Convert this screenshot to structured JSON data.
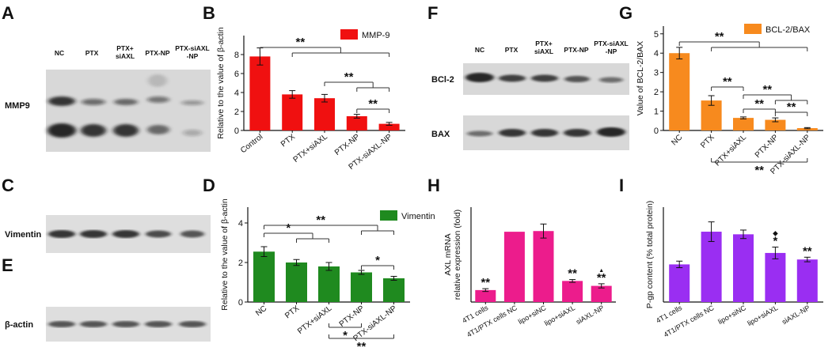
{
  "panel_letters": [
    "A",
    "B",
    "C",
    "D",
    "E",
    "F",
    "G",
    "H",
    "I"
  ],
  "blots": {
    "A": {
      "lanes": [
        "NC",
        "PTX",
        "PTX+\nsiAXL",
        "PTX-NP",
        "PTX-siAXL\n-NP"
      ],
      "row_label": "MMP9"
    },
    "C": {
      "row_label": "Vimentin"
    },
    "E": {
      "row_label": "β-actin"
    },
    "F": {
      "lanes": [
        "NC",
        "PTX",
        "PTX+\nsiAXL",
        "PTX-NP",
        "PTX-siAXL\n-NP"
      ],
      "row_labels": [
        "BCl-2",
        "BAX"
      ]
    }
  },
  "sig_marks": {
    "double": "**",
    "single": "*",
    "diamond": "◆",
    "triangle": "▲"
  },
  "colors": {
    "red": "#f01010",
    "green": "#1f8a1f",
    "orange": "#f78a1e",
    "pink": "#ec1c8c",
    "purple": "#9a2ef2"
  },
  "chart_data": [
    {
      "panel": "B",
      "type": "bar",
      "categories": [
        "Control",
        "PTX",
        "PTX+siAXL",
        "PTX-NP",
        "PTX-siAXL-NP"
      ],
      "series": [
        {
          "name": "MMP-9",
          "values": [
            7.8,
            3.8,
            3.4,
            1.5,
            0.7
          ],
          "errors": [
            0.9,
            0.4,
            0.4,
            0.2,
            0.15
          ]
        }
      ],
      "ylabel": "Relative to the value of β-actin",
      "ylim": [
        0,
        10
      ],
      "yticks": [
        0,
        2,
        4,
        6,
        8
      ],
      "legend": "top-right"
    },
    {
      "panel": "D",
      "type": "bar",
      "categories": [
        "NC",
        "PTX",
        "PTX+siAXL",
        "PTX-NP",
        "PTX-siAXL-NP"
      ],
      "series": [
        {
          "name": "Vimentin",
          "values": [
            2.55,
            2.0,
            1.8,
            1.5,
            1.2
          ],
          "errors": [
            0.25,
            0.15,
            0.2,
            0.1,
            0.1
          ]
        }
      ],
      "ylabel": "Relative to the value of β-actin",
      "ylim": [
        0,
        4.8
      ],
      "yticks": [
        0,
        2,
        4
      ],
      "legend": "top-right"
    },
    {
      "panel": "G",
      "type": "bar",
      "categories": [
        "NC",
        "PTX",
        "PTX+siAXL",
        "PTX-NP",
        "PTX-siAXL-NP"
      ],
      "series": [
        {
          "name": "BCL-2/BAX",
          "values": [
            4.0,
            1.55,
            0.65,
            0.55,
            0.12
          ],
          "errors": [
            0.3,
            0.25,
            0.05,
            0.1,
            0.03
          ]
        }
      ],
      "ylabel": "Value of BCL-2/BAX",
      "ylim": [
        0,
        5.4
      ],
      "yticks": [
        0,
        1,
        2,
        3,
        4,
        5
      ],
      "legend": "top-right"
    },
    {
      "panel": "H",
      "type": "bar",
      "categories": [
        "4T1 cells",
        "4T1/PTX cells NC",
        "lipo+siNC",
        "lipo+siAXL",
        "siAXL-NP"
      ],
      "series": [
        {
          "values": [
            0.17,
            1.0,
            1.01,
            0.3,
            0.23
          ],
          "errors": [
            0.02,
            0,
            0.1,
            0.02,
            0.03
          ]
        }
      ],
      "ylabel": "AXL mRNA\nrelative expression (fold)",
      "ylim": [
        0,
        1.35
      ],
      "yticks": []
    },
    {
      "panel": "I",
      "type": "bar",
      "categories": [
        "4T1 cells",
        "4T1/PTX cells NC",
        "lipo+siNC",
        "lipo+siAXL",
        "siAXL-NP"
      ],
      "series": [
        {
          "values": [
            1.15,
            2.15,
            2.07,
            1.5,
            1.3
          ],
          "errors": [
            0.1,
            0.3,
            0.13,
            0.18,
            0.07
          ]
        }
      ],
      "ylabel": "P-gp content (% total protein)",
      "ylim": [
        0,
        2.9
      ],
      "yticks": []
    }
  ]
}
